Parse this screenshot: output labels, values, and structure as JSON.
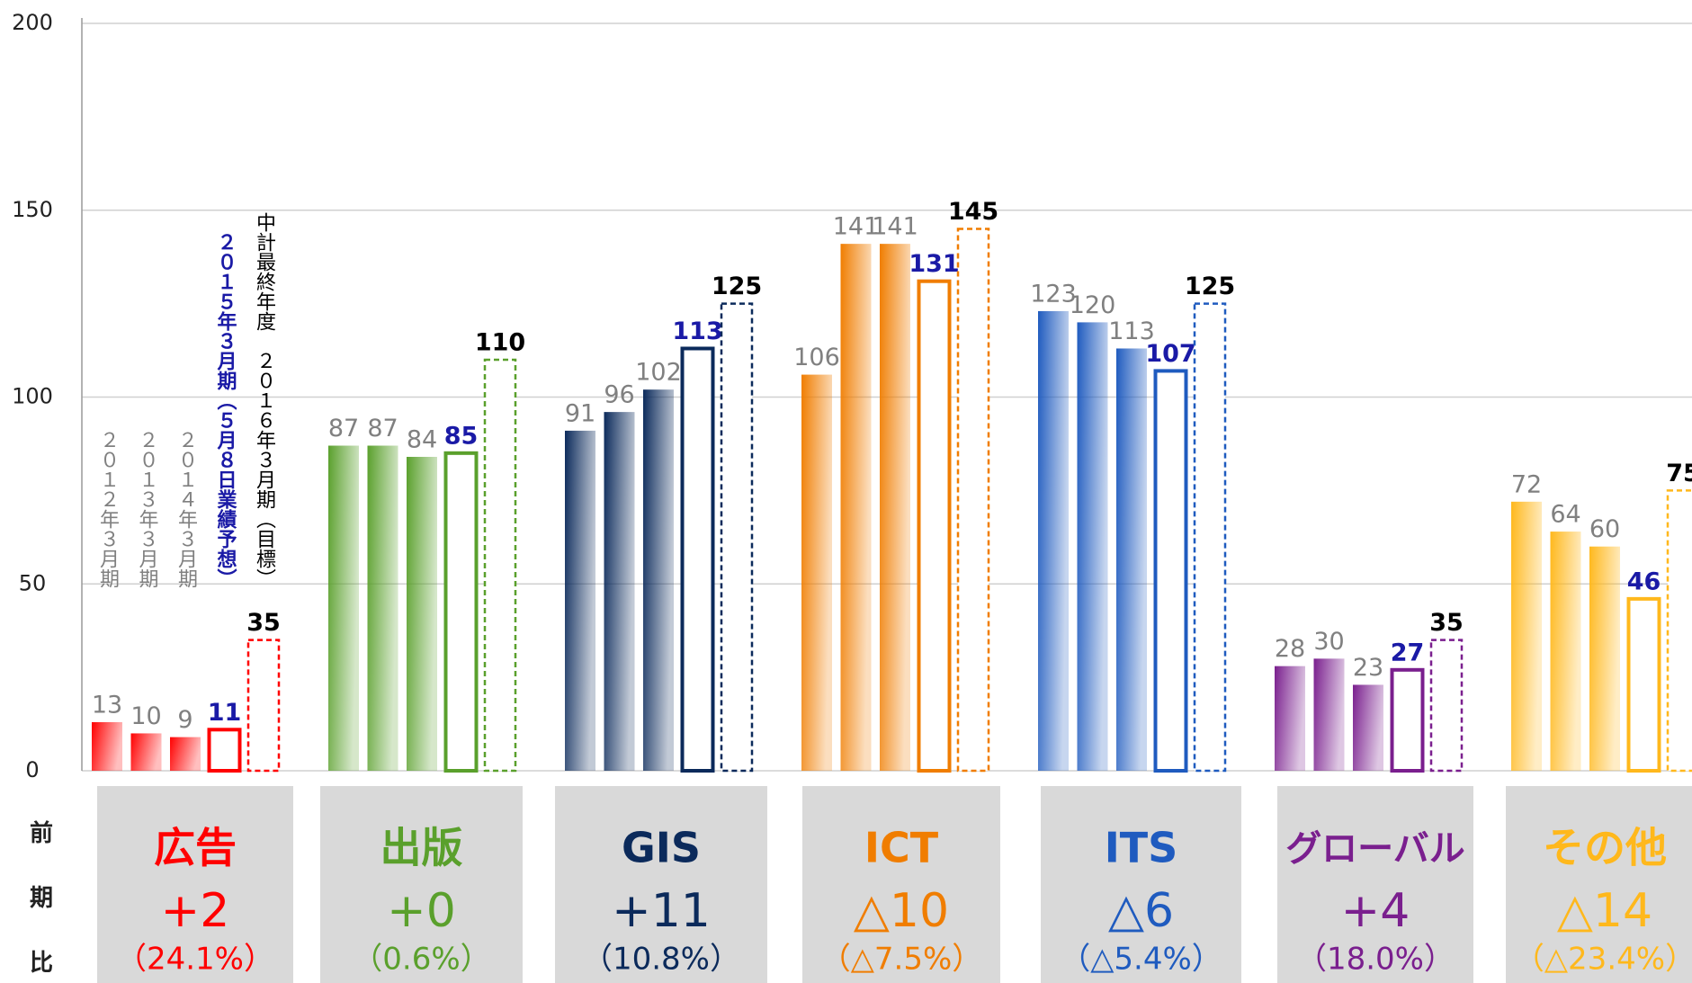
{
  "chart_data": {
    "type": "bar",
    "categories": [
      "広告",
      "出版",
      "GIS",
      "ICT",
      "ITS",
      "グローバル",
      "その他"
    ],
    "category_colors": [
      "#ff0000",
      "#5aa02c",
      "#0b2a5b",
      "#f07d00",
      "#1f5bbf",
      "#7a1f8e",
      "#ffb81c"
    ],
    "series": [
      {
        "name": "２０１２年３月期",
        "values": [
          13,
          87,
          91,
          106,
          123,
          28,
          72
        ]
      },
      {
        "name": "２０１３年３月期",
        "values": [
          10,
          87,
          96,
          141,
          120,
          30,
          64
        ]
      },
      {
        "name": "２０１４年３月期",
        "values": [
          9,
          84,
          102,
          141,
          113,
          23,
          60
        ]
      },
      {
        "name": "２０１５年３月期（５月８日業績予想）",
        "values": [
          11,
          85,
          113,
          131,
          107,
          27,
          46
        ]
      },
      {
        "name": "中計最終年度　２０１６年３月期（目標）",
        "values": [
          35,
          110,
          125,
          145,
          125,
          35,
          75
        ]
      }
    ],
    "comparison_label": "前期比",
    "changes": [
      "+2",
      "+0",
      "+11",
      "△10",
      "△6",
      "+4",
      "△14"
    ],
    "change_ratios": [
      "（24.1%）",
      "（0.6%）",
      "（10.8%）",
      "（△7.5%）",
      "（△5.4%）",
      "（18.0%）",
      "（△23.4%）"
    ],
    "ylim": [
      0,
      200
    ],
    "yticks": [
      0,
      50,
      100,
      150,
      200
    ],
    "grid": true
  }
}
